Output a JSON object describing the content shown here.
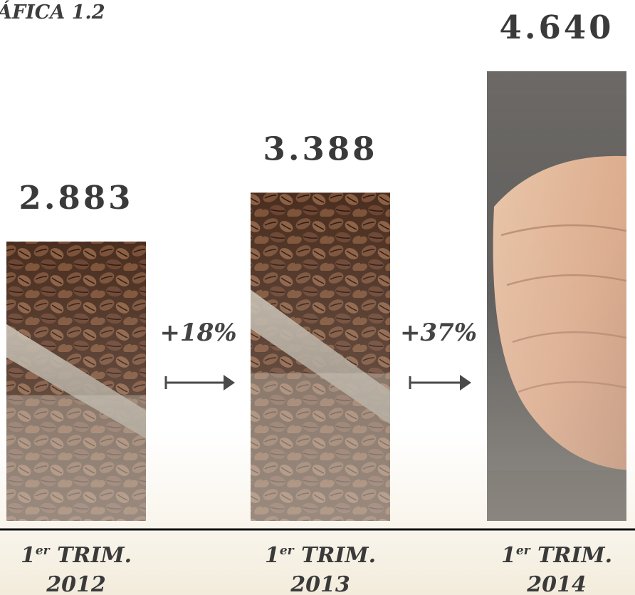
{
  "header": {
    "title": "ÁFICA 1.2"
  },
  "colors": {
    "value_text": "#3a3a3a",
    "arrow": "#4a4a4a",
    "baseline": "#111111",
    "background_bottom": "#f3ecdc"
  },
  "chart_data": {
    "type": "bar",
    "title": "ÁFICA 1.2",
    "categories": [
      "1er TRIM. 2012",
      "1er TRIM. 2013",
      "1er TRIM. 2014"
    ],
    "category_parts": [
      {
        "ordinal": "1",
        "ordinal_suffix": "er",
        "label": "TRIM.",
        "year": "2012"
      },
      {
        "ordinal": "1",
        "ordinal_suffix": "er",
        "label": "TRIM.",
        "year": "2013"
      },
      {
        "ordinal": "1",
        "ordinal_suffix": "er",
        "label": "TRIM.",
        "year": "2014"
      }
    ],
    "values": [
      2883,
      3388,
      4640
    ],
    "value_labels": [
      "2.883",
      "3.388",
      "4.640"
    ],
    "growth_labels": [
      "+18%",
      "+37%"
    ],
    "bar_fills": [
      "coffee-beans-photo",
      "coffee-beans-photo",
      "hand-photo"
    ],
    "ylim": [
      0,
      4640
    ],
    "grid": false,
    "legend": "none"
  }
}
